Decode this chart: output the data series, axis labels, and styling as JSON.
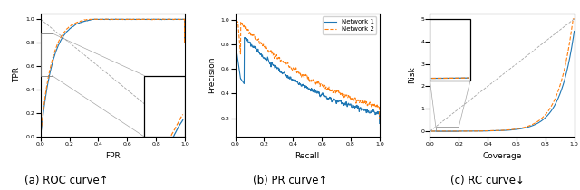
{
  "fig_width": 6.4,
  "fig_height": 2.1,
  "dpi": 100,
  "background_color": "#ffffff",
  "color_net1": "#1f77b4",
  "color_net2": "#ff7f0e",
  "line_width": 0.8,
  "captions": [
    "(a) ROC curve↑",
    "(b) PR curve↑",
    "(c) RC curve↓"
  ],
  "caption_fontsize": 8.5,
  "legend_labels": [
    "Network 1",
    "Network 2"
  ],
  "axes_labels": {
    "roc": {
      "x": "FPR",
      "y": "TPR"
    },
    "pr": {
      "x": "Recall",
      "y": "Precision"
    },
    "rc": {
      "x": "Coverage",
      "y": "Risk"
    }
  },
  "tick_labelsize": 4.5,
  "axes_labelsize": 6.5
}
